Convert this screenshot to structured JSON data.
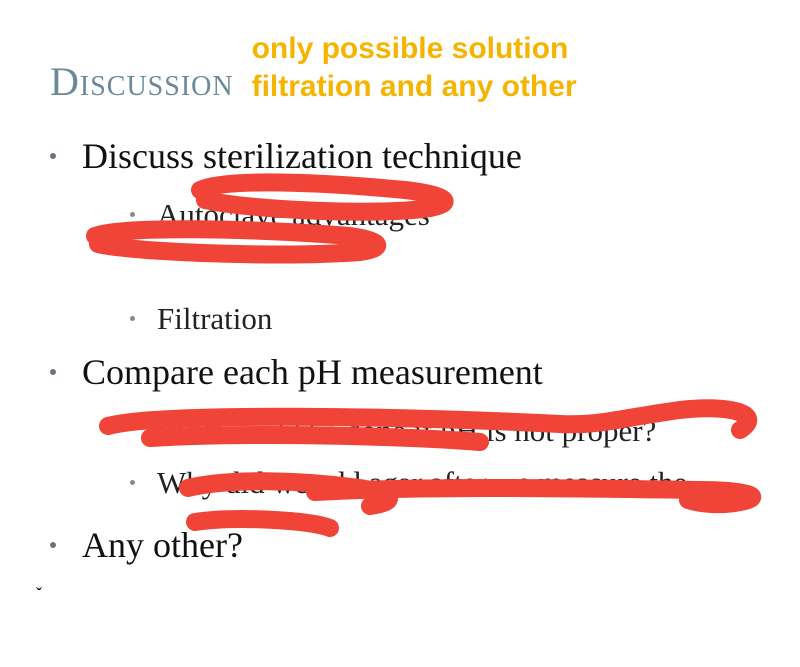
{
  "header": {
    "title": "Discussion",
    "title_color": "#6b8999",
    "annotation_line1": "only possible solution",
    "annotation_line2": "filtration and any other",
    "annotation_color": "#f5b400"
  },
  "bullets": {
    "l1_a": "Discuss sterilization technique",
    "l2_a1": "Autoclave advantages",
    "l2_a2": "Filtration",
    "l1_b": "Compare each pH measurement",
    "l2_b1": "What could be done if pH is not proper?",
    "l2_b2": "Why did we add agar after we measure the",
    "l1_c": "Any other?"
  },
  "style": {
    "body_text_color": "#111111",
    "sub_text_color": "#222222",
    "bullet_dot_color": "#6b7280",
    "scribble_color": "#f04438",
    "scribble_width": 18,
    "background": "#ffffff",
    "title_fontsize": 40,
    "annotation_fontsize": 30,
    "l1_fontsize": 36,
    "l2_fontsize": 31
  },
  "scribbles": {
    "color": "#f04438",
    "width": 18,
    "paths": [
      "M 200 190 C 225 178, 320 182, 405 190 C 440 194, 460 202, 430 208 C 380 216, 250 210, 205 200",
      "M 95 236 C 120 226, 250 228, 350 236 C 380 240, 388 248, 360 252 C 280 258, 130 252, 98 244",
      "M 108 426 C 160 412, 400 416, 560 424 C 600 426, 620 418, 680 410 C 730 404, 765 414, 740 430",
      "M 150 438 C 250 432, 400 436, 480 442",
      "M 188 488 C 230 478, 300 480, 360 488 C 395 494, 398 502, 370 506",
      "M 315 492 C 420 486, 560 488, 700 490 C 740 490, 770 496, 740 502 C 720 506, 700 504, 688 500",
      "M 195 522 C 235 516, 310 520, 330 528"
    ]
  }
}
